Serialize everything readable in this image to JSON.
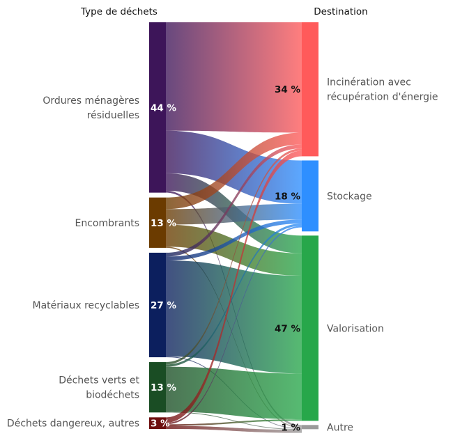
{
  "headers": {
    "left": "Type de déchets",
    "right": "Destination"
  },
  "sources": [
    {
      "id": "omr",
      "label_lines": [
        "Ordures ménagères",
        "résiduelles"
      ],
      "percent": "44 %",
      "value": 44,
      "color": "#3d1559"
    },
    {
      "id": "enc",
      "label_lines": [
        "Encombrants"
      ],
      "percent": "13 %",
      "value": 13,
      "color": "#6b3b00"
    },
    {
      "id": "mat",
      "label_lines": [
        "Matériaux recyclables"
      ],
      "percent": "27 %",
      "value": 27,
      "color": "#0c1f5e"
    },
    {
      "id": "vert",
      "label_lines": [
        "Déchets verts et",
        "biodéchets"
      ],
      "percent": "13 %",
      "value": 13,
      "color": "#1a4d24"
    },
    {
      "id": "dang",
      "label_lines": [
        "Déchets dangereux, autres"
      ],
      "percent": "3 %",
      "value": 3,
      "color": "#6e0f0f"
    }
  ],
  "targets": [
    {
      "id": "inc",
      "label_lines": [
        "Incinération avec",
        "récupération d'énergie"
      ],
      "percent": "34 %",
      "value": 34,
      "color": "#ff5a5a"
    },
    {
      "id": "sto",
      "label_lines": [
        "Stockage"
      ],
      "percent": "18 %",
      "value": 18,
      "color": "#2e8fff"
    },
    {
      "id": "val",
      "label_lines": [
        "Valorisation"
      ],
      "percent": "47 %",
      "value": 47,
      "color": "#27a74a"
    },
    {
      "id": "aut",
      "label_lines": [
        "Autre"
      ],
      "percent": "1 %",
      "value": 1,
      "color": "#9a9a9a"
    }
  ],
  "links": [
    {
      "source": "omr",
      "target": "inc",
      "value": 28
    },
    {
      "source": "omr",
      "target": "sto",
      "value": 11
    },
    {
      "source": "omr",
      "target": "val",
      "value": 4.5
    },
    {
      "source": "omr",
      "target": "aut",
      "value": 0.5
    },
    {
      "source": "enc",
      "target": "inc",
      "value": 3
    },
    {
      "source": "enc",
      "target": "sto",
      "value": 4
    },
    {
      "source": "enc",
      "target": "val",
      "value": 5.7
    },
    {
      "source": "enc",
      "target": "aut",
      "value": 0.3
    },
    {
      "source": "mat",
      "target": "inc",
      "value": 1
    },
    {
      "source": "mat",
      "target": "sto",
      "value": 1
    },
    {
      "source": "mat",
      "target": "val",
      "value": 24.8
    },
    {
      "source": "mat",
      "target": "aut",
      "value": 0.2
    },
    {
      "source": "vert",
      "target": "inc",
      "value": 0.6
    },
    {
      "source": "vert",
      "target": "sto",
      "value": 0.6
    },
    {
      "source": "vert",
      "target": "val",
      "value": 11.6
    },
    {
      "source": "vert",
      "target": "aut",
      "value": 0.2
    },
    {
      "source": "dang",
      "target": "inc",
      "value": 1.4
    },
    {
      "source": "dang",
      "target": "sto",
      "value": 0.4
    },
    {
      "source": "dang",
      "target": "val",
      "value": 0.4
    },
    {
      "source": "dang",
      "target": "aut",
      "value": 0.8
    }
  ]
}
